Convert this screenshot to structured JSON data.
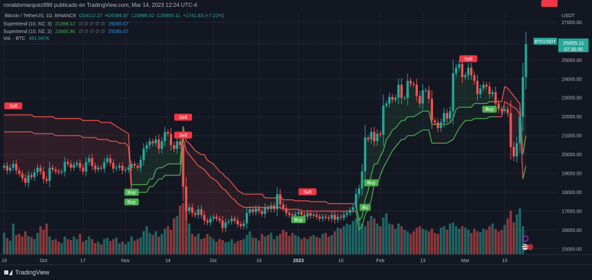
{
  "header": {
    "text": "ronaldomarquez998 publicado en TradingView.com, Mar 14, 2023 12:24 UTC-4"
  },
  "legend": {
    "symbol": "Bitcoin / TetherUS, 1D, BINANCE",
    "ohlc": {
      "o": "O24112.27",
      "h": "H26386.87",
      "l": "L23986.02",
      "c": "C25855.11",
      "chg": "+1741.63 (+7.22%)"
    },
    "st1_label": "Supertrend (10, hl2, 3)",
    "st1_value": "21398.12",
    "st1_ph": "∅ ∅ ∅ ∅ ∅",
    "st1_value2": "25085.07",
    "st2_label": "Supertrend (10, hl2, 2)",
    "st2_value": "22660.90",
    "st2_ph": "∅ ∅ ∅ ∅ ∅",
    "st2_value2": "25085.07",
    "vol_label": "Vol. · BTC",
    "vol_value": "461.047K"
  },
  "footer": {
    "brand": "TradingView"
  },
  "colors": {
    "bg": "#131722",
    "up": "#26a69a",
    "down": "#ef5350",
    "grid": "#1f2430",
    "sell": "#f23645",
    "buy": "#4caf50",
    "accent": "#2196f3"
  },
  "chart_data": {
    "type": "candlestick",
    "currency": "USDT",
    "ylim": [
      14700,
      27600
    ],
    "y_ticks": [
      "27000.00",
      "26000.00",
      "25000.00",
      "24000.00",
      "23000.00",
      "22000.00",
      "21000.00",
      "20000.00",
      "19000.00",
      "18000.00",
      "17000.00",
      "16000.00",
      "15000.00"
    ],
    "x_ticks": [
      "19",
      "Oct",
      "17",
      "Nov",
      "14",
      "Dic",
      "19",
      "2023",
      "16",
      "Feb",
      "13",
      "Mar",
      "13"
    ],
    "last_price_label": "BTCUSDT",
    "last_price": "25855.11",
    "countdown": "07:35:30",
    "closes": [
      19400,
      19150,
      19300,
      19500,
      19150,
      18980,
      18750,
      18500,
      18900,
      18800,
      19050,
      19300,
      19100,
      18700,
      18600,
      19300,
      19200,
      19100,
      19050,
      19100,
      19600,
      19500,
      19300,
      19450,
      19550,
      19300,
      19100,
      19600,
      19800,
      19400,
      19200,
      19300,
      19250,
      19600,
      19800,
      19550,
      19250,
      19300,
      19400,
      19150,
      19200,
      19300,
      19500,
      19400,
      19300,
      19700,
      20300,
      20500,
      20700,
      20600,
      20800,
      20300,
      20700,
      21200,
      21100,
      20500,
      20300,
      20700,
      20500,
      18300,
      17000,
      17200,
      16900,
      16800,
      17100,
      16800,
      16500,
      16400,
      16600,
      16700,
      16600,
      16500,
      16100,
      16400,
      16450,
      16600,
      16500,
      16300,
      16200,
      16350,
      16900,
      17100,
      16950,
      17150,
      17000,
      16850,
      17200,
      17100,
      17300,
      17100,
      17900,
      17350,
      17150,
      16900,
      16800,
      16750,
      16850,
      16950,
      16800,
      16700,
      16900,
      16750,
      16800,
      16700,
      16600,
      16700,
      16650,
      16600,
      16800,
      16550,
      16700,
      16650,
      16800,
      16900,
      17050,
      17200,
      17900,
      18200,
      19100,
      20900,
      20800,
      21200,
      20700,
      21100,
      21050,
      22600,
      22700,
      23050,
      22900,
      23000,
      23700,
      23000,
      23000,
      23900,
      23750,
      23700,
      23100,
      22700,
      23400,
      23400,
      22950,
      21800,
      21700,
      21400,
      21700,
      22200,
      21900,
      22300,
      24300,
      24600,
      24800,
      24100,
      24200,
      24600,
      24200,
      23900,
      23200,
      23500,
      23700,
      23600,
      23200,
      23300,
      22700,
      22400,
      22300,
      22400,
      22200,
      20400,
      19900,
      20600,
      22000,
      24100,
      25855
    ],
    "volume_rel": [
      0.42,
      0.32,
      0.27,
      0.6,
      0.38,
      0.4,
      0.35,
      0.45,
      0.36,
      0.34,
      0.3,
      0.42,
      0.55,
      0.48,
      0.6,
      0.35,
      0.28,
      0.3,
      0.25,
      0.22,
      0.35,
      0.3,
      0.28,
      0.35,
      0.3,
      0.4,
      0.25,
      0.28,
      0.35,
      0.3,
      0.22,
      0.25,
      0.2,
      0.3,
      0.32,
      0.26,
      0.3,
      0.33,
      0.22,
      0.25,
      0.2,
      0.25,
      0.35,
      0.27,
      0.3,
      0.33,
      0.45,
      0.55,
      0.42,
      0.38,
      0.45,
      0.35,
      0.4,
      0.5,
      0.55,
      0.48,
      0.7,
      0.75,
      0.95,
      1.0,
      0.85,
      0.6,
      0.4,
      0.35,
      0.4,
      0.3,
      0.32,
      0.4,
      0.35,
      0.3,
      0.25,
      0.3,
      0.28,
      0.24,
      0.25,
      0.3,
      0.22,
      0.26,
      0.28,
      0.3,
      0.38,
      0.45,
      0.33,
      0.32,
      0.27,
      0.4,
      0.35,
      0.38,
      0.42,
      0.3,
      0.36,
      0.4,
      0.48,
      0.44,
      0.36,
      0.42,
      0.38,
      0.35,
      0.3,
      0.33,
      0.3,
      0.35,
      0.38,
      0.34,
      0.32,
      0.4,
      0.42,
      0.35,
      0.38,
      0.45,
      0.52,
      0.5,
      0.55,
      0.6,
      0.58,
      0.65,
      0.7,
      0.72,
      0.6,
      0.55,
      0.65,
      0.75,
      0.7,
      0.6,
      0.55,
      0.72,
      0.8,
      0.6,
      0.58,
      0.5,
      0.6,
      0.55,
      0.48,
      0.45,
      0.4,
      0.45,
      0.52,
      0.55,
      0.5,
      0.48,
      0.45,
      0.5,
      0.42,
      0.4,
      0.52,
      0.55,
      0.48,
      0.6,
      0.62,
      0.55,
      0.5,
      0.55,
      0.52,
      0.48,
      0.42,
      0.5,
      0.45,
      0.44,
      0.5,
      0.48,
      0.55,
      0.6,
      0.5,
      0.45,
      0.48,
      0.58,
      0.7,
      0.85,
      0.62,
      0.78,
      0.9,
      0.55
    ],
    "st_fast": [
      22100,
      22100,
      22100,
      22100,
      22100,
      22100,
      22100,
      22100,
      22100,
      22100,
      22000,
      22000,
      22000,
      22000,
      22000,
      22000,
      22000,
      21900,
      21900,
      21900,
      21900,
      21900,
      21900,
      21900,
      21900,
      21900,
      21800,
      21800,
      21800,
      21800,
      21800,
      21800,
      21700,
      21700,
      21700,
      21700,
      21600,
      21500,
      21400,
      21300,
      21200,
      21100,
      18400,
      18400,
      18400,
      18400,
      18400,
      18400,
      18700,
      18700,
      19200,
      19300,
      19300,
      19400,
      19500,
      19500,
      19500,
      19500,
      19500,
      21500,
      20700,
      20600,
      20400,
      20200,
      20100,
      20000,
      20000,
      19700,
      19600,
      19500,
      19300,
      19100,
      19000,
      18800,
      18700,
      18500,
      18300,
      18100,
      18000,
      17900,
      17900,
      17900,
      17900,
      17900,
      17900,
      17900,
      17700,
      17700,
      17700,
      17700,
      17700,
      17800,
      17600,
      17600,
      17600,
      17600,
      17550,
      17550,
      17550,
      17550,
      17550,
      17500,
      17500,
      17500,
      17500,
      17500,
      17500,
      17400,
      17400,
      17400,
      17400,
      17400,
      17400,
      17400,
      17400,
      17400,
      17400,
      16500,
      16700,
      17600,
      18100,
      18900,
      19500,
      19500,
      19900,
      20200,
      20800,
      21000,
      21300,
      21400,
      21600,
      21800,
      21800,
      22000,
      22000,
      22000,
      22100,
      22200,
      22300,
      22300,
      22300,
      21600,
      21600,
      21600,
      21600,
      21600,
      21600,
      21700,
      21900,
      22400,
      22500,
      22500,
      22500,
      22500,
      22500,
      22700,
      22700,
      22700,
      22700,
      22700,
      22800,
      22800,
      22800,
      22800,
      22800,
      23600,
      23500,
      23300,
      23100,
      22900,
      22700,
      20000,
      21000,
      22700
    ],
    "st_slow": [
      21200,
      21200,
      21200,
      21200,
      21200,
      21200,
      21200,
      21200,
      21200,
      21200,
      21100,
      21100,
      21100,
      21100,
      21100,
      21100,
      21100,
      21000,
      21000,
      21000,
      21000,
      21000,
      21000,
      21000,
      21000,
      21000,
      20900,
      20900,
      20900,
      20900,
      20900,
      20800,
      20800,
      20800,
      20800,
      20700,
      20700,
      20700,
      20600,
      20600,
      20600,
      20400,
      18000,
      18000,
      18000,
      18000,
      18000,
      18000,
      18300,
      18300,
      18500,
      18700,
      18700,
      18900,
      18900,
      18900,
      18900,
      18900,
      18900,
      20900,
      20200,
      20000,
      19800,
      19600,
      19400,
      19300,
      19200,
      19000,
      18800,
      18700,
      18600,
      18400,
      18200,
      18100,
      17900,
      17700,
      17600,
      17400,
      17300,
      17200,
      17200,
      17200,
      17200,
      17200,
      17200,
      17200,
      17200,
      17200,
      17200,
      17200,
      17200,
      17200,
      17100,
      17100,
      17100,
      17100,
      17100,
      17100,
      17000,
      17000,
      17000,
      17000,
      17000,
      17000,
      17000,
      17000,
      17000,
      17000,
      17000,
      17000,
      17000,
      17000,
      17000,
      17000,
      17000,
      17000,
      17000,
      16000,
      16200,
      16800,
      17100,
      17600,
      18400,
      18400,
      18900,
      19300,
      19600,
      19900,
      20200,
      20400,
      20600,
      20800,
      20800,
      21000,
      21000,
      21000,
      21100,
      21200,
      21300,
      21300,
      21300,
      20600,
      20600,
      20600,
      20600,
      20600,
      20600,
      20700,
      20800,
      21100,
      21400,
      21600,
      21800,
      21800,
      21800,
      21900,
      21900,
      21900,
      21900,
      21900,
      22000,
      22000,
      22000,
      22000,
      22000,
      22800,
      22700,
      22600,
      22500,
      22400,
      22100,
      18700,
      19400,
      21400
    ]
  },
  "signals": [
    {
      "label": "Sell",
      "i": 3,
      "kind": "sell"
    },
    {
      "label": "Sell",
      "i": 59,
      "kind": "sell"
    },
    {
      "label": "Sell",
      "i": 59,
      "kind": "sell"
    },
    {
      "label": "Buy",
      "i": 42,
      "kind": "buy"
    },
    {
      "label": "Buy",
      "i": 42,
      "kind": "buy"
    },
    {
      "label": "Sell",
      "i": 100,
      "kind": "sell"
    },
    {
      "label": "Buy",
      "i": 97,
      "kind": "buy"
    },
    {
      "label": "Bu",
      "i": 119,
      "kind": "buy"
    },
    {
      "label": "Buy",
      "i": 121,
      "kind": "buy"
    },
    {
      "label": "Sell",
      "i": 153,
      "kind": "sell"
    },
    {
      "label": "Buy",
      "i": 160,
      "kind": "buy"
    },
    {
      "label": "Sell",
      "i": 180,
      "kind": "sell"
    },
    {
      "label": "Sell",
      "i": 187,
      "kind": "sell"
    },
    {
      "label": "Buy",
      "i": 194,
      "kind": "buy"
    },
    {
      "label": "Buy",
      "i": 194,
      "kind": "buy"
    }
  ]
}
